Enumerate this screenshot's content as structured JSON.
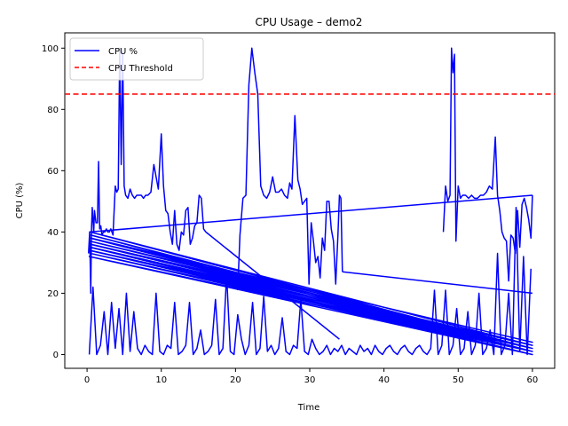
{
  "chart_data": {
    "type": "line",
    "title": "CPU Usage – demo2",
    "xlabel": "Time",
    "ylabel": "CPU (%)",
    "xlim": [
      -3,
      63
    ],
    "ylim": [
      -4.5,
      105
    ],
    "xticks": [
      0,
      10,
      20,
      30,
      40,
      50,
      60
    ],
    "yticks": [
      0,
      20,
      40,
      60,
      80,
      100
    ],
    "legend": {
      "placement": "top-left",
      "entries": [
        "CPU %",
        "CPU Threshold"
      ]
    },
    "colors": {
      "cpu": "#0000ff",
      "threshold": "#ff0000"
    },
    "threshold": {
      "name": "CPU Threshold",
      "value": 85,
      "style": "dashed"
    },
    "series": [
      {
        "name": "CPU %",
        "segments": [
          {
            "x": [
              0.2,
              0.35,
              0.5,
              0.6,
              0.7,
              0.9,
              1.0,
              1.2,
              1.4,
              1.55,
              1.7,
              1.85,
              2.0,
              2.2,
              2.4,
              2.6,
              2.8,
              3.0,
              3.2,
              3.5,
              3.8,
              4.0,
              4.2,
              4.4,
              4.6,
              4.8,
              5.0,
              5.2,
              5.5,
              5.8,
              6.1,
              6.4,
              6.7,
              7.0,
              7.3,
              7.6,
              7.9,
              8.2,
              8.6,
              9.0,
              9.3,
              9.6,
              10.0,
              10.3,
              10.6,
              10.9,
              11.2,
              11.5,
              11.8,
              12.1,
              12.4,
              12.7,
              13.0,
              13.3,
              13.6,
              13.9,
              14.2,
              14.5,
              14.8,
              15.1,
              15.4,
              15.7,
              16.0
            ],
            "y": [
              33,
              40,
              20,
              41,
              48,
              40,
              47,
              43,
              43,
              63,
              41,
              42,
              39,
              40,
              40,
              41,
              40,
              40,
              41,
              39,
              55,
              53,
              54,
              100,
              62,
              99,
              55,
              52,
              51,
              54,
              52,
              51,
              52,
              52,
              52,
              51,
              52,
              52,
              53,
              62,
              58,
              54,
              72,
              55,
              47,
              46,
              40,
              36,
              47,
              36,
              34,
              40,
              39,
              47,
              48,
              36,
              38,
              42,
              43,
              52,
              51,
              41,
              40
            ]
          },
          {
            "x": [
              16.0,
              34.0
            ],
            "y": [
              40,
              5
            ]
          },
          {
            "x": [
              20.3,
              20.6,
              21.0,
              21.4,
              21.8,
              22.2,
              22.6,
              23.0,
              23.4,
              23.8,
              24.2,
              24.6,
              25.0,
              25.4,
              25.8,
              26.2,
              26.6,
              27.0,
              27.3,
              27.6,
              28.0,
              28.4,
              28.7,
              29.0,
              29.3,
              29.6,
              29.9,
              30.2,
              30.5,
              30.8,
              31.1,
              31.4,
              31.7,
              32.0,
              32.3,
              32.6,
              32.9,
              33.2,
              33.5,
              33.8,
              34.0,
              34.2,
              34.4
            ],
            "y": [
              21,
              39,
              51,
              52,
              88,
              100,
              92,
              85,
              55,
              52,
              51,
              53,
              58,
              53,
              53,
              54,
              52,
              51,
              56,
              54,
              78,
              57,
              54,
              49,
              50,
              51,
              23,
              43,
              37,
              30,
              32,
              25,
              38,
              34,
              50,
              50,
              41,
              37,
              23,
              39,
              52,
              51,
              27
            ]
          },
          {
            "x": [
              34.4,
              60.0
            ],
            "y": [
              27,
              20
            ]
          },
          {
            "x": [
              48.0,
              48.3,
              48.6,
              48.9,
              49.1,
              49.3,
              49.5,
              49.7,
              50.0,
              50.3,
              50.6,
              51.0,
              51.4,
              51.8,
              52.2,
              52.6,
              53.0,
              53.4,
              53.8,
              54.2,
              54.6,
              55.0,
              55.3,
              55.6,
              55.9,
              56.2,
              56.5,
              56.8,
              57.1,
              57.4,
              57.7,
              58.0,
              58.3,
              58.6,
              58.9,
              59.2,
              59.5,
              59.8,
              60.0
            ],
            "y": [
              40,
              55,
              50,
              52,
              100,
              92,
              98,
              37,
              55,
              51,
              52,
              52,
              51,
              52,
              51,
              51,
              52,
              52,
              53,
              55,
              54,
              71,
              52,
              47,
              40,
              38,
              37,
              24,
              39,
              38,
              33,
              47,
              35,
              49,
              51,
              48,
              44,
              38,
              52
            ]
          },
          {
            "x": [
              60.0,
              0.3
            ],
            "y": [
              52,
              40
            ]
          },
          {
            "x": [
              0.3,
              0.8,
              1.3,
              1.8,
              2.3,
              2.8,
              3.3,
              3.8,
              4.3,
              4.8,
              5.3,
              5.8,
              6.3,
              6.8,
              7.3,
              7.8,
              8.3,
              8.8,
              9.3,
              9.8,
              10.3,
              10.8,
              11.3,
              11.8,
              12.3,
              12.8,
              13.3,
              13.8,
              14.3,
              14.8,
              15.3,
              15.8,
              16.3,
              16.8,
              17.3,
              17.8,
              18.3,
              18.8,
              19.3,
              19.8,
              20.3,
              20.8,
              21.3,
              21.8,
              22.3,
              22.8,
              23.3,
              23.8,
              24.3,
              24.8,
              25.3,
              25.8,
              26.3,
              26.8,
              27.3,
              27.8,
              28.3,
              28.8,
              29.3,
              29.8,
              30.3,
              30.8,
              31.3,
              31.8,
              32.3,
              32.8,
              33.3,
              33.8,
              34.3,
              34.8,
              35.3,
              35.8,
              36.3,
              36.8,
              37.3,
              37.8,
              38.3,
              38.8,
              39.3,
              39.8,
              40.3,
              40.8,
              41.3,
              41.8,
              42.3,
              42.8,
              43.3,
              43.8,
              44.3,
              44.8,
              45.3,
              45.8,
              46.3,
              46.8,
              47.3,
              47.8,
              48.3,
              48.8,
              49.3,
              49.8,
              50.3,
              50.8,
              51.3,
              51.8,
              52.3,
              52.8,
              53.3,
              53.8,
              54.3,
              54.8,
              55.3,
              55.8,
              56.3,
              56.8,
              57.3,
              57.8,
              58.3,
              58.8,
              59.3,
              59.8
            ],
            "y": [
              0,
              22,
              0,
              3,
              14,
              0,
              17,
              2,
              15,
              0,
              20,
              1,
              14,
              2,
              0,
              3,
              1,
              0,
              20,
              1,
              0,
              3,
              2,
              17,
              0,
              1,
              3,
              17,
              0,
              2,
              8,
              0,
              1,
              3,
              18,
              0,
              2,
              26,
              1,
              0,
              13,
              5,
              0,
              3,
              17,
              0,
              2,
              19,
              1,
              3,
              0,
              2,
              12,
              1,
              0,
              3,
              2,
              18,
              1,
              0,
              5,
              2,
              0,
              1,
              3,
              0,
              2,
              1,
              3,
              0,
              2,
              1,
              0,
              3,
              1,
              2,
              0,
              3,
              1,
              0,
              2,
              3,
              1,
              0,
              2,
              3,
              1,
              0,
              2,
              3,
              1,
              0,
              2,
              21,
              0,
              3,
              21,
              0,
              3,
              15,
              0,
              2,
              14,
              0,
              3,
              20,
              0,
              2,
              8,
              0,
              33,
              0,
              3,
              20,
              0,
              48,
              1,
              32,
              0,
              28
            ]
          },
          {
            "x": [
              60.0,
              0.4,
              60.0,
              0.5,
              60.0,
              0.4,
              60.0,
              0.5,
              60.0,
              0.4,
              60.0,
              0.5,
              60.0,
              0.4,
              60.0,
              0.5,
              60.0,
              0.4,
              60.0,
              0.3,
              60.0,
              0.4,
              60.0,
              0.5,
              60.0,
              0.3,
              60.0
            ],
            "y": [
              3,
              40,
              2,
              39,
              1,
              38,
              4,
              38,
              2,
              37,
              3,
              36,
              1,
              36,
              2,
              35,
              0,
              35,
              1,
              34,
              2,
              34,
              0,
              33,
              1,
              32,
              0
            ]
          }
        ]
      }
    ]
  }
}
